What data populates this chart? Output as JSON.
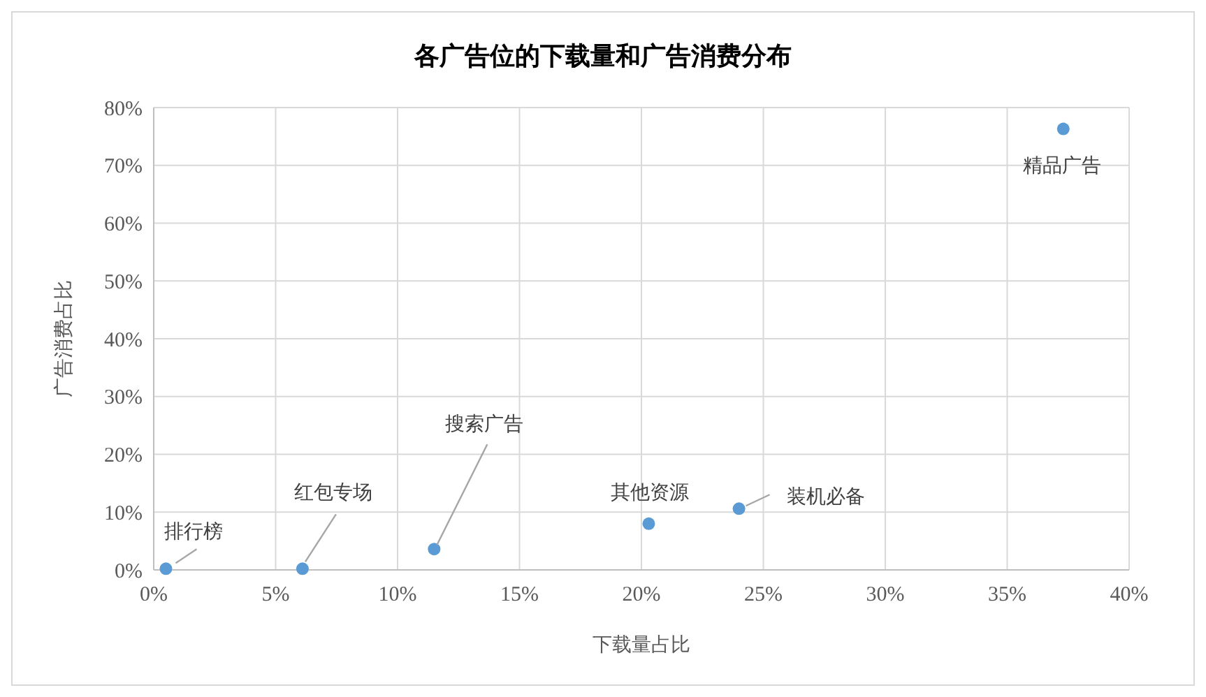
{
  "chart_data": {
    "type": "scatter",
    "title": "各广告位的下载量和广告消费分布",
    "xlabel": "下载量占比",
    "ylabel": "广告消费占比",
    "series": [
      {
        "color": "#5b9bd5",
        "x": [
          0.5,
          6.1,
          11.5,
          20.3,
          24.0,
          37.3
        ],
        "values": [
          0.2,
          0.2,
          3.6,
          8.0,
          10.6,
          76.3
        ]
      }
    ],
    "xlim": [
      0,
      40
    ],
    "xticks": [
      {
        "value": 0,
        "label": "0%"
      },
      {
        "value": 5,
        "label": "5%"
      },
      {
        "value": 10,
        "label": "10%"
      },
      {
        "value": 15,
        "label": "15%"
      },
      {
        "value": 20,
        "label": "20%"
      },
      {
        "value": 25,
        "label": "25%"
      },
      {
        "value": 30,
        "label": "30%"
      },
      {
        "value": 35,
        "label": "35%"
      },
      {
        "value": 40,
        "label": "40%"
      }
    ],
    "ylim": [
      0,
      80
    ],
    "yticks": [
      {
        "value": 0,
        "label": "0%"
      },
      {
        "value": 10,
        "label": "10%"
      },
      {
        "value": 20,
        "label": "20%"
      },
      {
        "value": 30,
        "label": "30%"
      },
      {
        "value": 40,
        "label": "40%"
      },
      {
        "value": 50,
        "label": "50%"
      },
      {
        "value": 60,
        "label": "60%"
      },
      {
        "value": 70,
        "label": "70%"
      },
      {
        "value": 80,
        "label": "80%"
      }
    ],
    "grid": true,
    "marker": "circle",
    "annotations": [
      {
        "text": "排行榜",
        "x": 0.5,
        "y": 0.2
      },
      {
        "text": "红包专场",
        "x": 6.1,
        "y": 0.2
      },
      {
        "text": "搜索广告",
        "x": 11.5,
        "y": 3.6
      },
      {
        "text": "其他资源",
        "x": 20.3,
        "y": 8.0
      },
      {
        "text": "装机必备",
        "x": 24.0,
        "y": 10.6
      },
      {
        "text": "精品广告",
        "x": 37.3,
        "y": 76.3
      }
    ]
  }
}
